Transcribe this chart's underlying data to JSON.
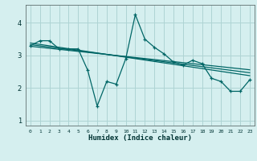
{
  "title": "",
  "xlabel": "Humidex (Indice chaleur)",
  "bg_color": "#d5efef",
  "grid_color": "#aed4d4",
  "line_color": "#006666",
  "xlim": [
    -0.5,
    23.5
  ],
  "ylim": [
    0.85,
    4.55
  ],
  "xticks": [
    0,
    1,
    2,
    3,
    4,
    5,
    6,
    7,
    8,
    9,
    10,
    11,
    12,
    13,
    14,
    15,
    16,
    17,
    18,
    19,
    20,
    21,
    22,
    23
  ],
  "yticks": [
    1,
    2,
    3,
    4
  ],
  "line1_x": [
    0,
    1,
    2,
    3,
    4,
    5,
    6,
    7,
    8,
    9,
    10,
    11,
    12,
    13,
    14,
    15,
    16,
    17,
    18,
    19,
    20,
    21,
    22,
    23
  ],
  "line1_y": [
    3.3,
    3.45,
    3.45,
    3.2,
    3.2,
    3.2,
    2.55,
    1.45,
    2.2,
    2.12,
    2.9,
    4.25,
    3.5,
    3.25,
    3.05,
    2.8,
    2.7,
    2.85,
    2.75,
    2.3,
    2.2,
    1.9,
    1.9,
    2.25
  ],
  "line2_x": [
    0,
    23
  ],
  "line2_y": [
    3.38,
    2.38
  ],
  "line3_x": [
    0,
    23
  ],
  "line3_y": [
    3.33,
    2.47
  ],
  "line4_x": [
    0,
    23
  ],
  "line4_y": [
    3.28,
    2.56
  ]
}
